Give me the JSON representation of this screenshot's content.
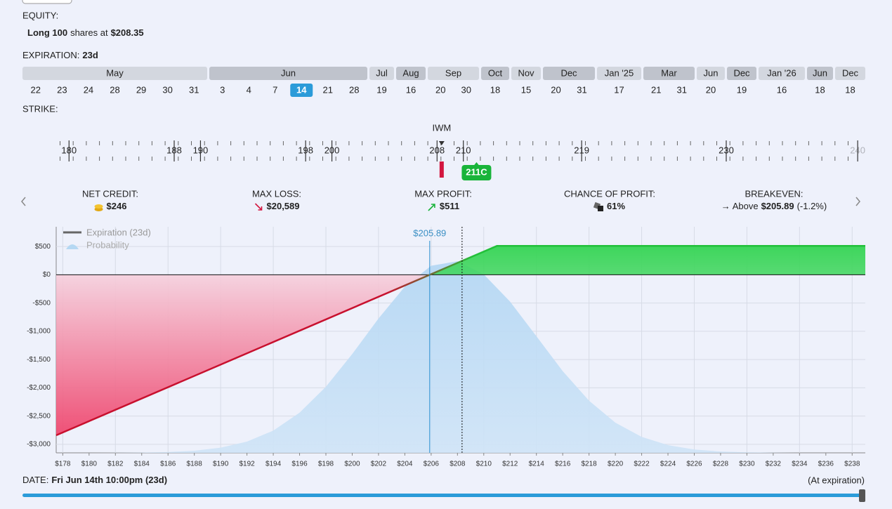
{
  "equity": {
    "label": "EQUITY:",
    "quantity": "Long 100",
    "unit": "shares at",
    "price": "$208.35"
  },
  "expiration": {
    "label": "EXPIRATION:",
    "value": "23d",
    "months": [
      {
        "name": "May",
        "days": [
          22,
          23,
          24,
          28,
          29,
          30,
          31
        ]
      },
      {
        "name": "Jun",
        "days": [
          3,
          4,
          7,
          14,
          21,
          28
        ],
        "selected_day": 14
      },
      {
        "name": "Jul",
        "days": [
          19
        ]
      },
      {
        "name": "Aug",
        "days": [
          16
        ]
      },
      {
        "name": "Sep",
        "days": [
          20,
          30
        ]
      },
      {
        "name": "Oct",
        "days": [
          18
        ]
      },
      {
        "name": "Nov",
        "days": [
          15
        ]
      },
      {
        "name": "Dec",
        "days": [
          20,
          31
        ]
      },
      {
        "name": "Jan '25",
        "days": [
          17
        ]
      },
      {
        "name": "Mar",
        "days": [
          21,
          31
        ]
      },
      {
        "name": "Jun",
        "days": [
          20
        ]
      },
      {
        "name": "Dec",
        "days": [
          19
        ]
      },
      {
        "name": "Jan '26",
        "days": [
          16
        ]
      },
      {
        "name": "Jun",
        "days": [
          18
        ]
      },
      {
        "name": "Dec",
        "days": [
          18
        ]
      }
    ]
  },
  "strike": {
    "label": "STRIKE:",
    "ticker": "IWM",
    "spot": 208.35,
    "ticks": [
      180,
      188,
      190,
      198,
      200,
      208,
      210,
      219,
      230,
      240
    ],
    "selected": {
      "value": 211,
      "label": "211C"
    }
  },
  "stats": [
    {
      "label": "NET CREDIT:",
      "value": "$246"
    },
    {
      "label": "MAX LOSS:",
      "value": "$20,589"
    },
    {
      "label": "MAX PROFIT:",
      "value": "$511"
    },
    {
      "label": "CHANCE OF PROFIT:",
      "value": "61%"
    },
    {
      "label": "BREAKEVEN:",
      "prefix": "→ Above",
      "value": "$205.89",
      "suffix": "(-1.2%)"
    }
  ],
  "chart_data": {
    "type": "line",
    "xlim": [
      177.5,
      239
    ],
    "ylim": [
      -3150,
      850
    ],
    "xticks": [
      {
        "value": 178,
        "label": "$178"
      },
      {
        "value": 180,
        "label": "$180"
      },
      {
        "value": 182,
        "label": "$182"
      },
      {
        "value": 184,
        "label": "$184"
      },
      {
        "value": 186,
        "label": "$186"
      },
      {
        "value": 188,
        "label": "$188"
      },
      {
        "value": 190,
        "label": "$190"
      },
      {
        "value": 192,
        "label": "$192"
      },
      {
        "value": 194,
        "label": "$194"
      },
      {
        "value": 196,
        "label": "$196"
      },
      {
        "value": 198,
        "label": "$198"
      },
      {
        "value": 200,
        "label": "$200"
      },
      {
        "value": 202,
        "label": "$202"
      },
      {
        "value": 204,
        "label": "$204"
      },
      {
        "value": 206,
        "label": "$206"
      },
      {
        "value": 208,
        "label": "$208"
      },
      {
        "value": 210,
        "label": "$210"
      },
      {
        "value": 212,
        "label": "$212"
      },
      {
        "value": 214,
        "label": "$214"
      },
      {
        "value": 216,
        "label": "$216"
      },
      {
        "value": 218,
        "label": "$218"
      },
      {
        "value": 220,
        "label": "$220"
      },
      {
        "value": 222,
        "label": "$222"
      },
      {
        "value": 224,
        "label": "$224"
      },
      {
        "value": 226,
        "label": "$226"
      },
      {
        "value": 228,
        "label": "$228"
      },
      {
        "value": 230,
        "label": "$230"
      },
      {
        "value": 232,
        "label": "$232"
      },
      {
        "value": 234,
        "label": "$234"
      },
      {
        "value": 236,
        "label": "$236"
      },
      {
        "value": 238,
        "label": "$238"
      }
    ],
    "yticks": [
      {
        "value": 500,
        "label": "$500"
      },
      {
        "value": 0,
        "label": "$0"
      },
      {
        "value": -500,
        "label": "-$500"
      },
      {
        "value": -1000,
        "label": "-$1,000"
      },
      {
        "value": -1500,
        "label": "-$1,500"
      },
      {
        "value": -2000,
        "label": "-$2,000"
      },
      {
        "value": -2500,
        "label": "-$2,500"
      },
      {
        "value": -3000,
        "label": "-$3,000"
      }
    ],
    "grid": true,
    "legend": "top-left",
    "spot": 208.35,
    "breakeven": {
      "value": 205.89,
      "label": "$205.89"
    },
    "series": [
      {
        "name": "Expiration (23d)",
        "colors": {
          "loss": "#c8102e",
          "profit": "#22c03a"
        },
        "x": [
          177.5,
          211,
          239
        ],
        "values": [
          -2839,
          511,
          511
        ]
      },
      {
        "name": "Probability",
        "color": "#b5d8f3",
        "x": [
          178,
          180,
          182,
          184,
          186,
          188,
          190,
          192,
          194,
          196,
          198,
          200,
          202,
          204,
          206,
          208,
          210,
          212,
          214,
          216,
          218,
          220,
          222,
          224,
          226,
          228,
          230,
          232,
          234,
          236,
          238
        ],
        "values": [
          -3150,
          -3150,
          -3148,
          -3145,
          -3136,
          -3112,
          -3059,
          -2951,
          -2757,
          -2439,
          -1981,
          -1402,
          -773,
          -209,
          160,
          240,
          9,
          -474,
          -1087,
          -1704,
          -2228,
          -2616,
          -2868,
          -3014,
          -3091,
          -3126,
          -3141,
          -3147,
          -3150,
          -3150,
          -3150
        ]
      }
    ]
  },
  "date": {
    "label": "DATE:",
    "value": "Fri Jun 14th 10:00pm (23d)",
    "status": "(At expiration)"
  }
}
